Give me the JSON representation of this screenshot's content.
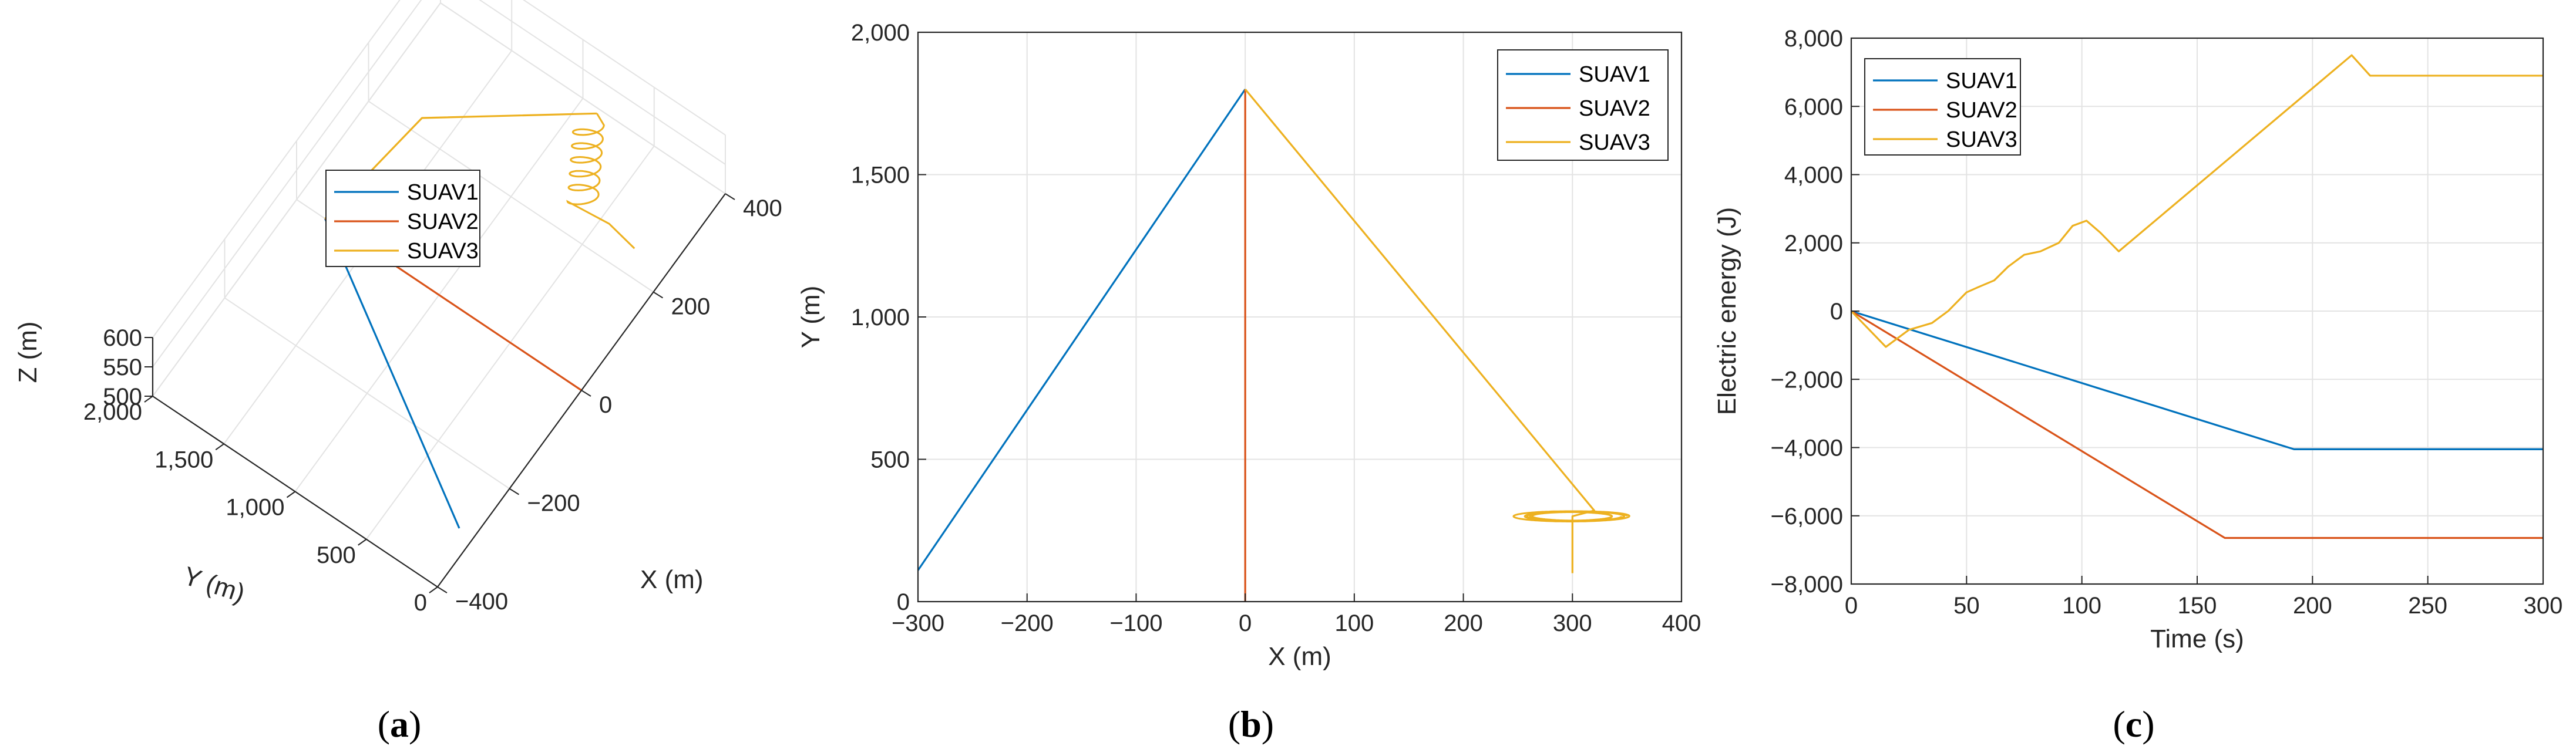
{
  "series_colors": {
    "SUAV1": "#0072BD",
    "SUAV2": "#D95319",
    "SUAV3": "#EDB120"
  },
  "panels": [
    {
      "open": "(",
      "letter": "a",
      "close": ")"
    },
    {
      "open": "(",
      "letter": "b",
      "close": ")"
    },
    {
      "open": "(",
      "letter": "c",
      "close": ")"
    }
  ],
  "chart_data": [
    {
      "type": "line",
      "projection": "3d",
      "xlabel": "X (m)",
      "ylabel": "Y (m)",
      "zlabel": "Z (m)",
      "xlim": [
        -400,
        400
      ],
      "ylim": [
        0,
        2000
      ],
      "zlim": [
        500,
        600
      ],
      "xticks": [
        "−400",
        "−200",
        "0",
        "200",
        "400"
      ],
      "yticks": [
        "0",
        "500",
        "1,000",
        "1,500",
        "2,000"
      ],
      "zticks": [
        "500",
        "550",
        "600"
      ],
      "grid": true,
      "legend": {
        "position": "top-center",
        "entries": [
          "SUAV1",
          "SUAV2",
          "SUAV3"
        ]
      },
      "series": [
        {
          "name": "SUAV1",
          "x": [
            0,
            -300
          ],
          "y": [
            1800,
            100
          ],
          "z": [
            500,
            500
          ]
        },
        {
          "name": "SUAV2",
          "x": [
            0,
            0
          ],
          "y": [
            1800,
            0
          ],
          "z": [
            500,
            500
          ]
        },
        {
          "name": "SUAV3",
          "x": [
            0,
            210,
            320
          ],
          "y": [
            1800,
            1650,
            700
          ],
          "z": [
            500,
            520,
            590
          ],
          "note_loiter": true
        }
      ]
    },
    {
      "type": "line",
      "xlabel": "X (m)",
      "ylabel": "Y (m)",
      "xlim": [
        -300,
        400
      ],
      "ylim": [
        0,
        2000
      ],
      "xticks": [
        "−300",
        "−200",
        "−100",
        "0",
        "100",
        "200",
        "300",
        "400"
      ],
      "yticks": [
        "0",
        "500",
        "1,000",
        "1,500",
        "2,000"
      ],
      "grid": true,
      "legend": {
        "position": "top-right",
        "entries": [
          "SUAV1",
          "SUAV2",
          "SUAV3"
        ]
      },
      "series": [
        {
          "name": "SUAV1",
          "x": [
            -300,
            0
          ],
          "y": [
            110,
            1800
          ]
        },
        {
          "name": "SUAV2",
          "x": [
            0,
            0
          ],
          "y": [
            0,
            1800
          ]
        },
        {
          "name": "SUAV3",
          "x": [
            0,
            320,
            300,
            300
          ],
          "y": [
            1800,
            320,
            300,
            100
          ],
          "loiter": {
            "cx": 300,
            "cy": 300,
            "rx": 45,
            "ry": 30
          }
        }
      ]
    },
    {
      "type": "line",
      "xlabel": "Time (s)",
      "ylabel": "Electric energy (J)",
      "xlim": [
        0,
        300
      ],
      "ylim": [
        -8000,
        8000
      ],
      "xticks": [
        "0",
        "50",
        "100",
        "150",
        "200",
        "250",
        "300"
      ],
      "yticks": [
        "−8,000",
        "−6,000",
        "−4,000",
        "−2,000",
        "0",
        "2,000",
        "4,000",
        "6,000",
        "8,000"
      ],
      "grid": true,
      "legend": {
        "position": "top-left",
        "entries": [
          "SUAV1",
          "SUAV2",
          "SUAV3"
        ]
      },
      "series": [
        {
          "name": "SUAV1",
          "x": [
            0,
            192,
            300
          ],
          "y": [
            0,
            -4050,
            -4050
          ]
        },
        {
          "name": "SUAV2",
          "x": [
            0,
            162,
            300
          ],
          "y": [
            0,
            -6650,
            -6650
          ]
        },
        {
          "name": "SUAV3",
          "x": [
            0,
            15,
            25,
            35,
            42,
            50,
            55,
            62,
            68,
            75,
            82,
            90,
            96,
            102,
            108,
            116,
            217,
            225,
            300
          ],
          "y": [
            0,
            -1050,
            -550,
            -350,
            0,
            550,
            700,
            900,
            1300,
            1650,
            1750,
            2000,
            2500,
            2650,
            2300,
            1750,
            7500,
            6900,
            6900
          ]
        }
      ]
    }
  ]
}
